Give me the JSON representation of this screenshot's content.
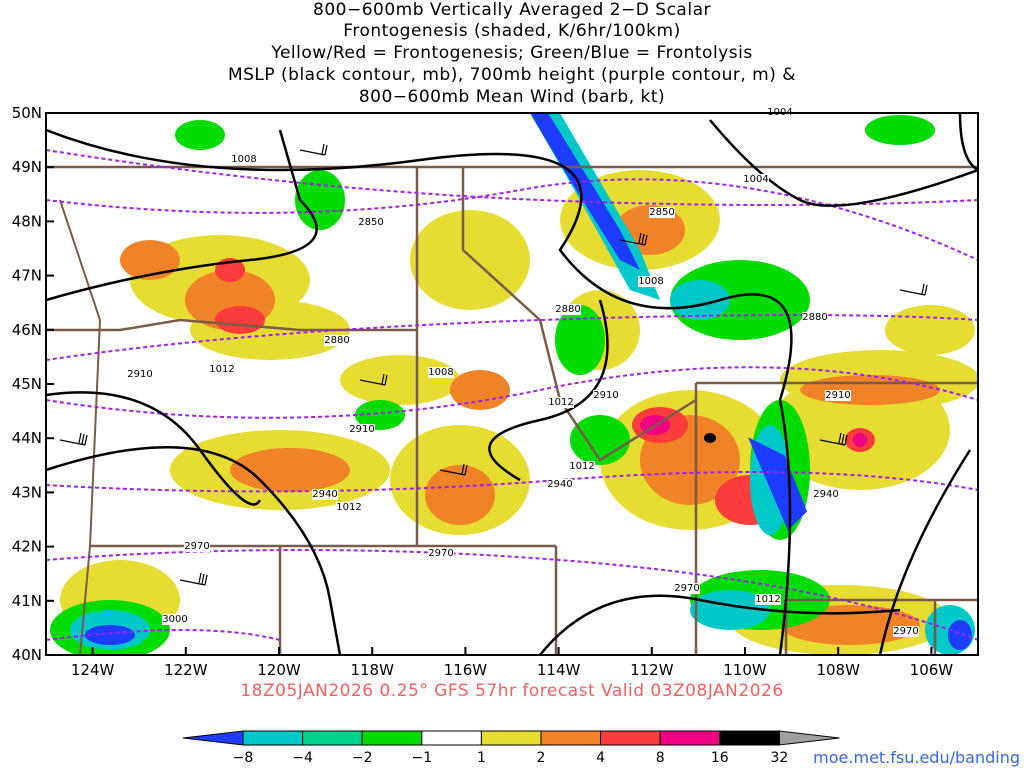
{
  "title_lines": [
    "800−600mb Vertically Averaged 2−D Scalar",
    "Frontogenesis (shaded, K/6hr/100km)",
    "Yellow/Red = Frontogenesis;  Green/Blue = Frontolysis",
    "MSLP (black contour, mb), 700mb height (purple contour, m) &",
    "800−600mb Mean Wind (barb, kt)"
  ],
  "valid_line": "18Z05JAN2026 0.25° GFS 57hr forecast Valid 03Z08JAN2026",
  "url": "moe.met.fsu.edu/banding",
  "map": {
    "lon_range": [
      -125,
      -105
    ],
    "lat_range": [
      40,
      50
    ],
    "lat_labels": [
      "40N",
      "41N",
      "42N",
      "43N",
      "44N",
      "45N",
      "46N",
      "47N",
      "48N",
      "49N",
      "50N"
    ],
    "lon_labels": [
      "124W",
      "122W",
      "120W",
      "118W",
      "116W",
      "114W",
      "112W",
      "110W",
      "108W",
      "106W"
    ],
    "mslp_labels": [
      "1004",
      "1004",
      "1008",
      "1008",
      "1008",
      "1012",
      "1012",
      "1012",
      "1012",
      "1012"
    ],
    "height_labels": [
      "2850",
      "2850",
      "2880",
      "2880",
      "2880",
      "2910",
      "2910",
      "2910",
      "2910",
      "2940",
      "2940",
      "2940",
      "2970",
      "2970",
      "2970",
      "2970",
      "3000"
    ]
  },
  "colorbar": {
    "labels": [
      "−8",
      "−4",
      "−2",
      "−1",
      "1",
      "2",
      "4",
      "8",
      "16",
      "32"
    ],
    "colors": [
      "#1e3cff",
      "#00c8c8",
      "#00d28c",
      "#00dc00",
      "#ffffff",
      "#e6dc32",
      "#f08228",
      "#fa3c3c",
      "#f00082",
      "#000000",
      "#a0a0a0"
    ]
  }
}
